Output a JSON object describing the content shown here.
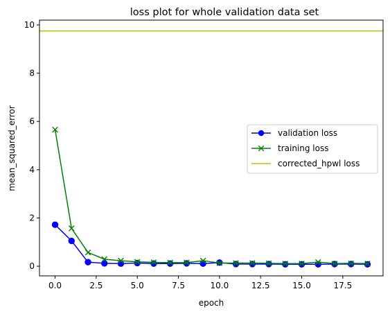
{
  "chart_data": {
    "type": "line",
    "title": "loss plot for whole validation data set",
    "xlabel": "epoch",
    "ylabel": "mean_squared_error",
    "xlim": [
      -0.95,
      19.95
    ],
    "ylim": [
      -0.4,
      10.2
    ],
    "xticks": [
      0,
      2.5,
      5,
      7.5,
      10,
      12.5,
      15,
      17.5
    ],
    "xtick_labels": [
      "0.0",
      "2.5",
      "5.0",
      "7.5",
      "10.0",
      "12.5",
      "15.0",
      "17.5"
    ],
    "yticks": [
      0,
      2,
      4,
      6,
      8,
      10
    ],
    "ytick_labels": [
      "0",
      "2",
      "4",
      "6",
      "8",
      "10"
    ],
    "legend_position": "center-right",
    "grid": false,
    "series": [
      {
        "name": "validation loss",
        "kind": "line-marker",
        "marker": "circle",
        "color": "#0000ff",
        "x": [
          0,
          1,
          2,
          3,
          4,
          5,
          6,
          7,
          8,
          9,
          10,
          11,
          12,
          13,
          14,
          15,
          16,
          17,
          18,
          19
        ],
        "values": [
          1.72,
          1.05,
          0.17,
          0.12,
          0.11,
          0.13,
          0.11,
          0.11,
          0.12,
          0.11,
          0.15,
          0.09,
          0.09,
          0.09,
          0.08,
          0.08,
          0.08,
          0.09,
          0.09,
          0.08
        ]
      },
      {
        "name": "training loss",
        "kind": "line-marker",
        "marker": "x",
        "color": "#008000",
        "x": [
          0,
          1,
          2,
          3,
          4,
          5,
          6,
          7,
          8,
          9,
          10,
          11,
          12,
          13,
          14,
          15,
          16,
          17,
          18,
          19
        ],
        "values": [
          5.66,
          1.57,
          0.57,
          0.29,
          0.23,
          0.18,
          0.16,
          0.15,
          0.15,
          0.23,
          0.13,
          0.13,
          0.13,
          0.12,
          0.11,
          0.11,
          0.17,
          0.11,
          0.12,
          0.11
        ]
      },
      {
        "name": "corrected_hpwl loss",
        "kind": "hline",
        "color": "#bfbf00",
        "y": 9.75
      }
    ]
  }
}
